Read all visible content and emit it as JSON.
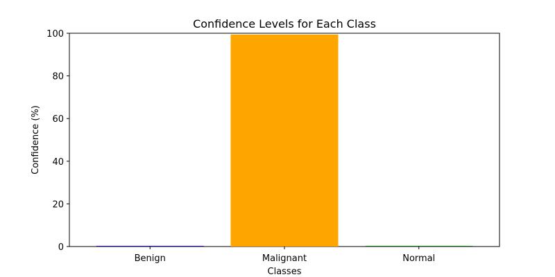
{
  "chart_data": {
    "type": "bar",
    "title": "Confidence Levels for Each Class",
    "xlabel": "Classes",
    "ylabel": "Confidence (%)",
    "categories": [
      "Benign",
      "Malignant",
      "Normal"
    ],
    "values": [
      0.3,
      99.4,
      0.3
    ],
    "colors": [
      "#0000ff",
      "#ffa500",
      "#008000"
    ],
    "ylim": [
      0,
      100
    ],
    "yticks": [
      "0",
      "20",
      "40",
      "60",
      "80",
      "100"
    ],
    "grid": false,
    "legend": "none"
  }
}
